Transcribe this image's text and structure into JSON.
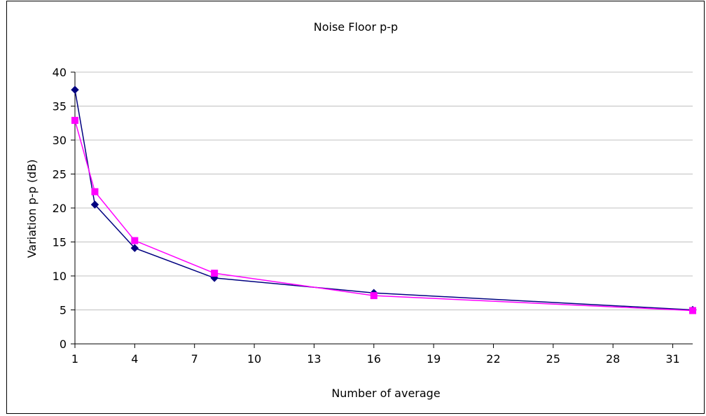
{
  "chart_data": {
    "type": "line",
    "title": "Noise Floor p-p",
    "xlabel": "Number of average",
    "ylabel": "Variation p-p (dB)",
    "xlim": [
      1,
      32
    ],
    "ylim": [
      0,
      40
    ],
    "x_ticks": [
      1,
      4,
      7,
      10,
      13,
      16,
      19,
      22,
      25,
      28,
      31
    ],
    "y_ticks": [
      0,
      5,
      10,
      15,
      20,
      25,
      30,
      35,
      40
    ],
    "grid": "horizontal",
    "legend": "none",
    "series": [
      {
        "color": "#000080",
        "marker": "diamond",
        "points": [
          [
            1,
            37.4
          ],
          [
            2,
            20.5
          ],
          [
            4,
            14.1
          ],
          [
            8,
            9.7
          ],
          [
            16,
            7.5
          ],
          [
            32,
            5.0
          ]
        ]
      },
      {
        "color": "#ff00ff",
        "marker": "square",
        "points": [
          [
            1,
            32.9
          ],
          [
            2,
            22.4
          ],
          [
            4,
            15.2
          ],
          [
            8,
            10.4
          ],
          [
            16,
            7.1
          ],
          [
            32,
            4.9
          ]
        ]
      }
    ]
  }
}
